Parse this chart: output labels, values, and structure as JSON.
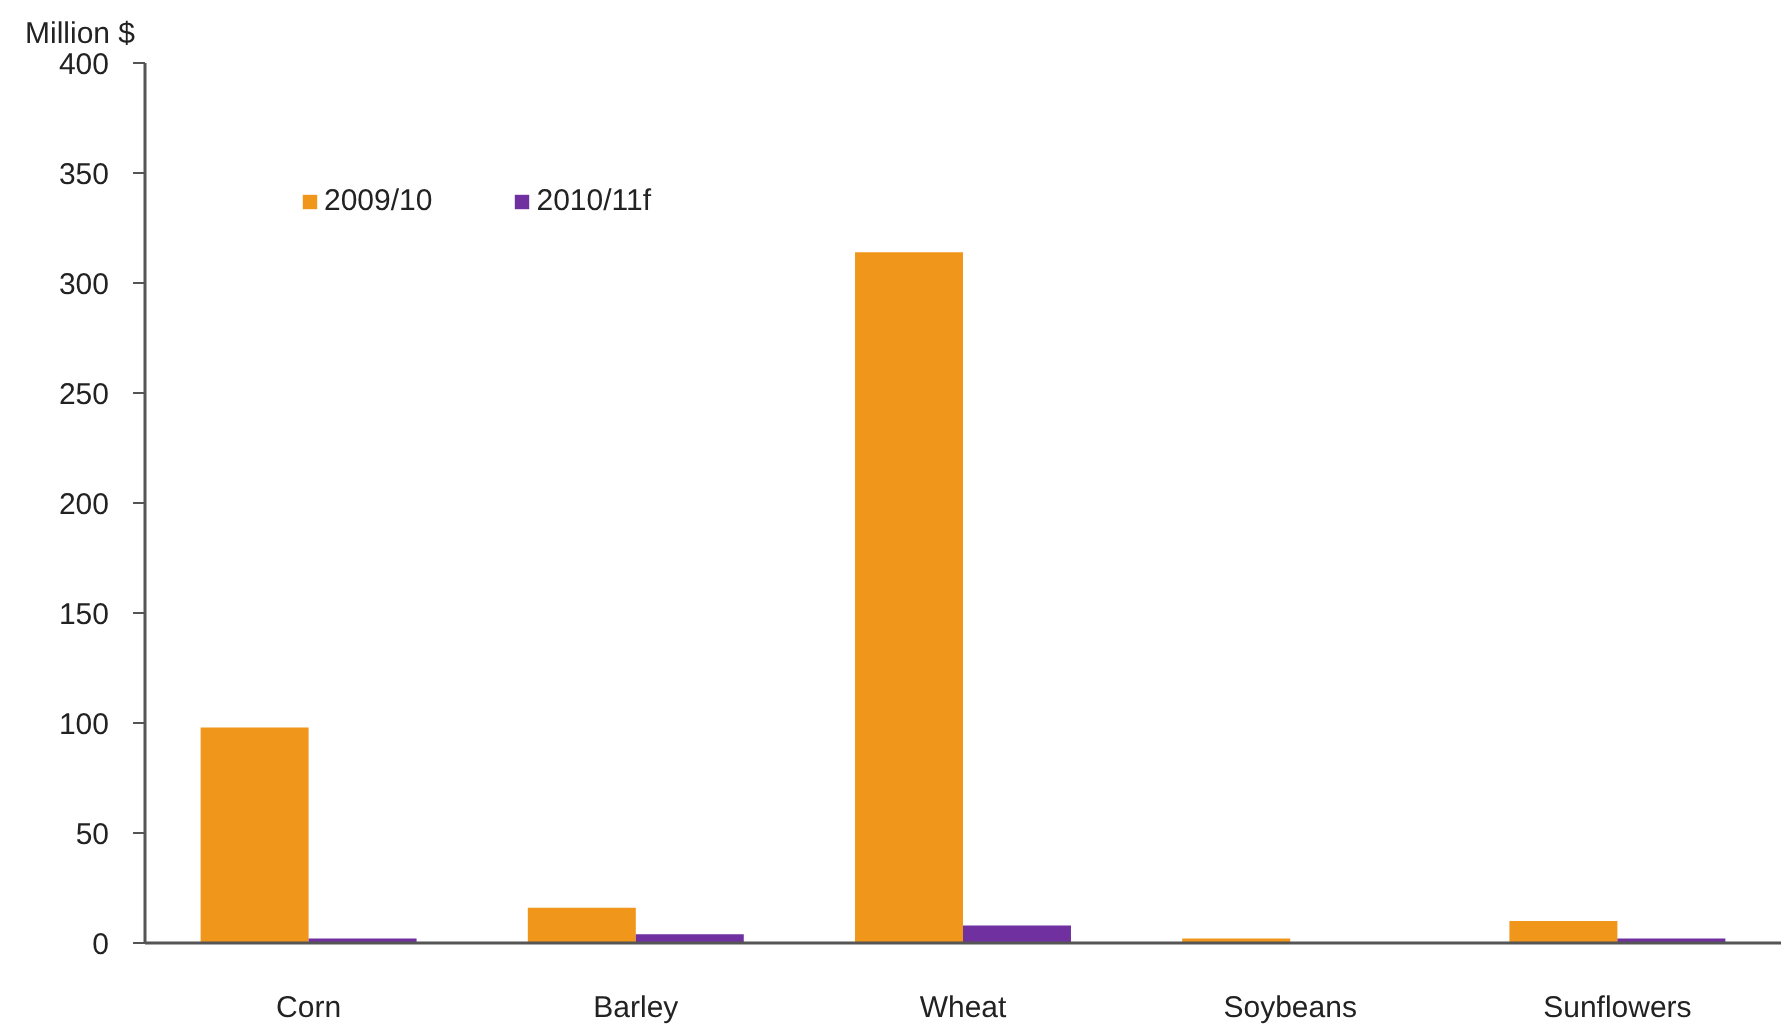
{
  "chart_data": {
    "type": "bar",
    "ylabel": "Million $",
    "categories": [
      "Corn",
      "Barley",
      "Wheat",
      "Soybeans",
      "Sunflowers"
    ],
    "series": [
      {
        "name": "2009/10",
        "color": "#f0961a",
        "values": [
          98,
          16,
          314,
          2,
          10
        ]
      },
      {
        "name": "2010/11f",
        "color": "#7030a0",
        "values": [
          2,
          4,
          8,
          0,
          2
        ]
      }
    ],
    "ylim": [
      0,
      400
    ],
    "yticks": [
      0,
      50,
      100,
      150,
      200,
      250,
      300,
      350,
      400
    ],
    "grid": false,
    "legend": "top left"
  }
}
